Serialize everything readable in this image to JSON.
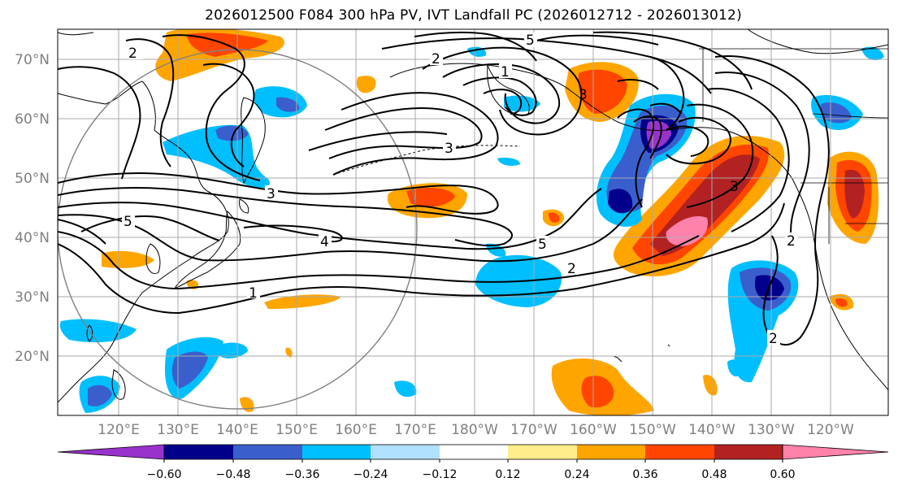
{
  "title": "2026012500 F084 300 hPa PV, IVT Landfall PC (2026012712 - 2026013012)",
  "map": {
    "lat_labels": [
      "70°N",
      "60°N",
      "50°N",
      "40°N",
      "30°N",
      "20°N"
    ],
    "lon_labels": [
      "120°E",
      "130°E",
      "140°E",
      "150°E",
      "160°E",
      "170°E",
      "180°W",
      "170°W",
      "160°W",
      "150°W",
      "140°W",
      "130°W",
      "120°W"
    ],
    "contour_labels": [
      "5",
      "3",
      "3",
      "2",
      "1",
      "4",
      "5",
      "2",
      "2",
      "2",
      "3",
      "1",
      "5",
      "2",
      "3"
    ]
  },
  "colorbar": {
    "ticks": [
      "−0.60",
      "−0.48",
      "−0.36",
      "−0.24",
      "−0.12",
      "0.12",
      "0.24",
      "0.36",
      "0.48",
      "0.60"
    ],
    "colors": [
      "#9932cc",
      "#00008b",
      "#3a5fcd",
      "#00bfff",
      "#b0e2ff",
      "#ffffff",
      "#ffec8b",
      "#ffa500",
      "#ff4500",
      "#b22222",
      "#ff82ab",
      "#ff82ab"
    ]
  }
}
